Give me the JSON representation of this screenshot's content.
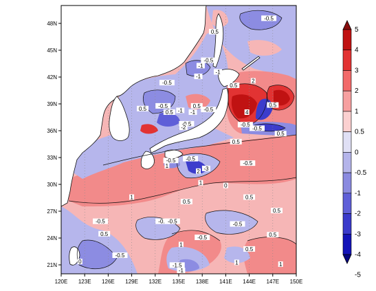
{
  "map": {
    "lon_ticks": [
      "120E",
      "123E",
      "126E",
      "129E",
      "132E",
      "135E",
      "138E",
      "141E",
      "144E",
      "147E",
      "150E"
    ],
    "lat_ticks": [
      "21N",
      "24N",
      "27N",
      "30N",
      "33N",
      "36N",
      "39N",
      "42N",
      "45N",
      "48N"
    ],
    "lon_range": [
      120,
      150
    ],
    "lat_range": [
      20,
      50
    ],
    "contour_labels": [
      {
        "text": "-0.5",
        "lon": 133.5,
        "lat": 41.3
      },
      {
        "text": "-1",
        "lon": 137.8,
        "lat": 43.2
      },
      {
        "text": "-0.5",
        "lon": 138.8,
        "lat": 43.8
      },
      {
        "text": "0.5",
        "lon": 139.6,
        "lat": 47.0
      },
      {
        "text": "-0.5",
        "lon": 146.5,
        "lat": 48.5
      },
      {
        "text": "-1",
        "lon": 140.0,
        "lat": 42.5
      },
      {
        "text": "-1",
        "lon": 137.5,
        "lat": 42.0
      },
      {
        "text": "0.5",
        "lon": 142.0,
        "lat": 41.0
      },
      {
        "text": "2",
        "lon": 144.5,
        "lat": 41.5
      },
      {
        "text": "0.5",
        "lon": 130.4,
        "lat": 38.4
      },
      {
        "text": "-0.5",
        "lon": 133.0,
        "lat": 38.7
      },
      {
        "text": "0.5",
        "lon": 133.8,
        "lat": 38.0
      },
      {
        "text": "-1",
        "lon": 135.2,
        "lat": 38.2
      },
      {
        "text": "0.5",
        "lon": 137.3,
        "lat": 38.7
      },
      {
        "text": "-1",
        "lon": 136.8,
        "lat": 38.0
      },
      {
        "text": "-0.5",
        "lon": 138.8,
        "lat": 38.3
      },
      {
        "text": "-0.5",
        "lon": 136.0,
        "lat": 36.7
      },
      {
        "text": "-2",
        "lon": 135.6,
        "lat": 36.3
      },
      {
        "text": "4",
        "lon": 143.7,
        "lat": 38.0
      },
      {
        "text": "0.5",
        "lon": 147.0,
        "lat": 38.8
      },
      {
        "text": "-0.5",
        "lon": 143.5,
        "lat": 36.6
      },
      {
        "text": "-0.5",
        "lon": 145.0,
        "lat": 36.2
      },
      {
        "text": "0.5",
        "lon": 142.3,
        "lat": 34.7
      },
      {
        "text": "0.5",
        "lon": 148.0,
        "lat": 35.6
      },
      {
        "text": "-0.5",
        "lon": 134.0,
        "lat": 32.6
      },
      {
        "text": "-0.5",
        "lon": 136.5,
        "lat": 32.8
      },
      {
        "text": "-3",
        "lon": 138.5,
        "lat": 31.7
      },
      {
        "text": "-0.5",
        "lon": 143.8,
        "lat": 32.3
      },
      {
        "text": "1",
        "lon": 133.5,
        "lat": 32.0
      },
      {
        "text": "1",
        "lon": 137.8,
        "lat": 30.1
      },
      {
        "text": "2",
        "lon": 137.5,
        "lat": 31.4
      },
      {
        "text": "1",
        "lon": 129.0,
        "lat": 28.5
      },
      {
        "text": "0.5",
        "lon": 136.0,
        "lat": 28.0
      },
      {
        "text": "0",
        "lon": 141.0,
        "lat": 29.8
      },
      {
        "text": "0.5",
        "lon": 144.0,
        "lat": 28.5
      },
      {
        "text": "0.5",
        "lon": 147.5,
        "lat": 27.0
      },
      {
        "text": "-0.5",
        "lon": 125.0,
        "lat": 25.8
      },
      {
        "text": "0.5",
        "lon": 125.5,
        "lat": 24.4
      },
      {
        "text": "-0.5",
        "lon": 133.0,
        "lat": 25.8
      },
      {
        "text": "-0.5",
        "lon": 134.2,
        "lat": 25.8
      },
      {
        "text": "-0.5",
        "lon": 138.0,
        "lat": 24.0
      },
      {
        "text": "-0.5",
        "lon": 142.5,
        "lat": 25.5
      },
      {
        "text": "1",
        "lon": 135.3,
        "lat": 23.2
      },
      {
        "text": "0.5",
        "lon": 147.0,
        "lat": 24.3
      },
      {
        "text": "0.5",
        "lon": 144.0,
        "lat": 22.7
      },
      {
        "text": "-0.5",
        "lon": 127.5,
        "lat": 22.0
      },
      {
        "text": "-1.5",
        "lon": 134.8,
        "lat": 20.9
      },
      {
        "text": "-1",
        "lon": 135.3,
        "lat": 20.3
      },
      {
        "text": "0",
        "lon": 122.4,
        "lat": 21.3
      },
      {
        "text": "1",
        "lon": 142.4,
        "lat": 21.2
      },
      {
        "text": "1",
        "lon": 148.0,
        "lat": 21.0
      }
    ]
  },
  "colorbar": {
    "labels": [
      "5",
      "4",
      "3",
      "2",
      "1",
      "0.5",
      "0",
      "-0.5",
      "-1",
      "-2",
      "-3",
      "-4",
      "-5"
    ],
    "colors": [
      "#880c0c",
      "#c01212",
      "#e23333",
      "#f26a6a",
      "#f7a0a0",
      "#fbd0d0",
      "#e0e0f5",
      "#b4b4ea",
      "#8a8ae0",
      "#5f5fd8",
      "#3a3acb",
      "#1313b8",
      "#050580"
    ]
  }
}
